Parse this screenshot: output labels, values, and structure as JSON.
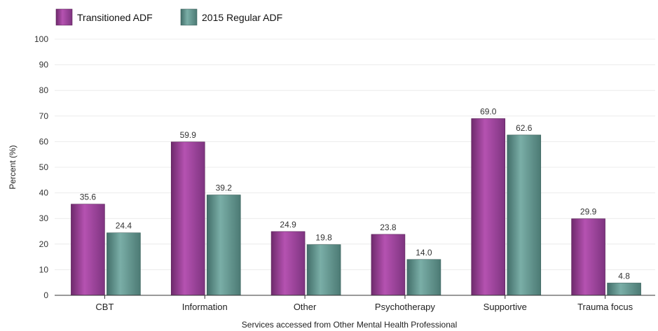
{
  "chart_data": {
    "type": "bar",
    "title": "",
    "xlabel": "Services accessed from Other Mental Health Professional",
    "ylabel": "Percent (%)",
    "ylim": [
      0,
      100
    ],
    "yticks": [
      0,
      10,
      20,
      30,
      40,
      50,
      60,
      70,
      80,
      90,
      100
    ],
    "grid": true,
    "legend_position": "top-left",
    "categories": [
      "CBT",
      "Information",
      "Other",
      "Psychotherapy",
      "Supportive",
      "Trauma focus"
    ],
    "series": [
      {
        "name": "Transitioned ADF",
        "color": "#9b3e98",
        "values": [
          35.6,
          59.9,
          24.9,
          23.8,
          69.0,
          29.9
        ],
        "labels": [
          "35.6",
          "59.9",
          "24.9",
          "23.8",
          "69.0",
          "29.9"
        ]
      },
      {
        "name": "2015 Regular ADF",
        "color": "#5e908a",
        "values": [
          24.4,
          39.2,
          19.8,
          14.0,
          62.6,
          4.8
        ],
        "labels": [
          "24.4",
          "39.2",
          "19.8",
          "14.0",
          "62.6",
          "4.8"
        ]
      }
    ]
  }
}
